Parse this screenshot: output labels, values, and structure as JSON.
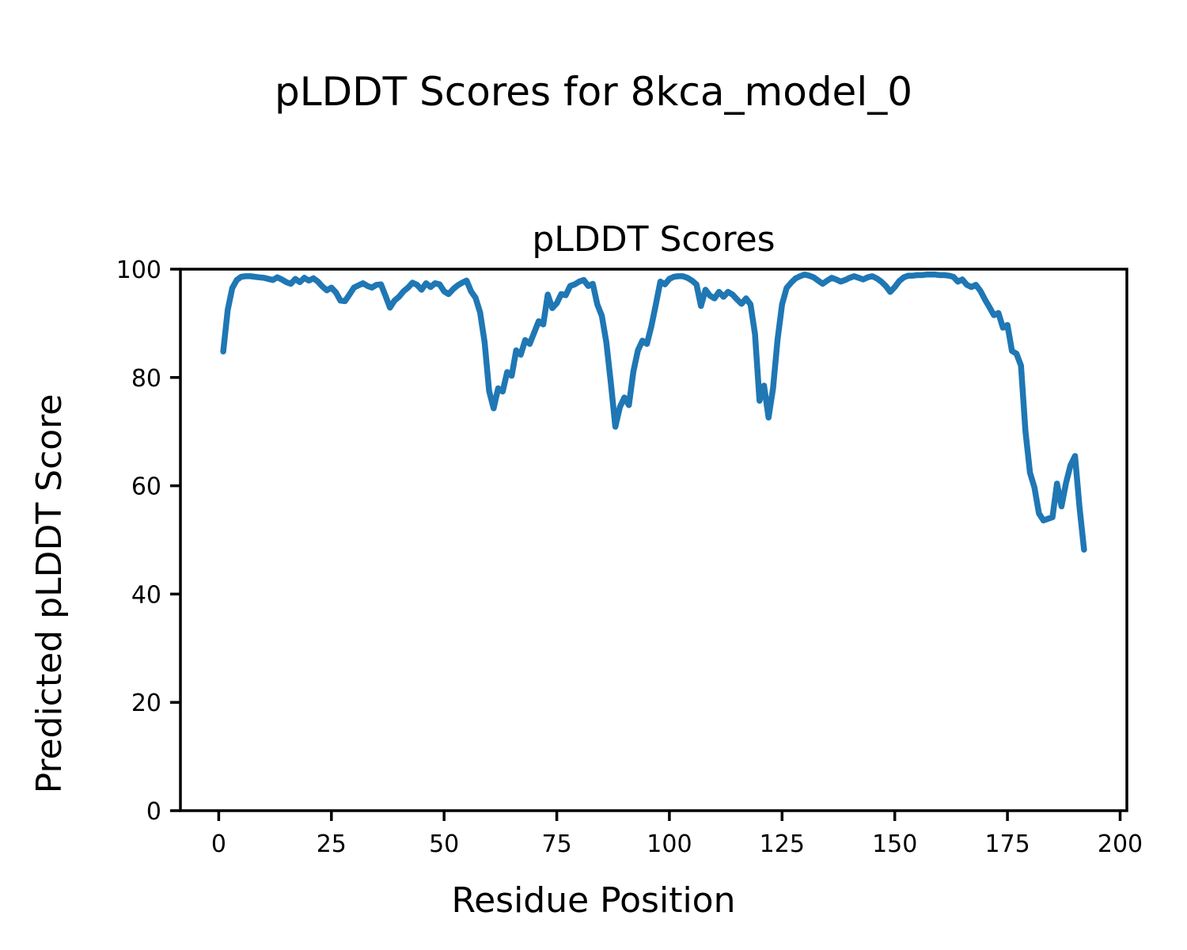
{
  "figure": {
    "background": "#ffffff",
    "frame_color": "#000000"
  },
  "chart_data": {
    "type": "line",
    "suptitle": "pLDDT Scores for 8kca_model_0",
    "title": "pLDDT Scores",
    "xlabel": "Residue Position",
    "ylabel": "Predicted pLDDT Score",
    "line_color": "#1f77b4",
    "grid": false,
    "legend": "none",
    "xlim": [
      -8.5,
      201.5
    ],
    "ylim": [
      0,
      100
    ],
    "xticks": [
      0,
      25,
      50,
      75,
      100,
      125,
      150,
      175,
      200
    ],
    "yticks": [
      0,
      20,
      40,
      60,
      80,
      100
    ],
    "x_start": 1,
    "x_step": 1,
    "values": [
      84.8,
      92.5,
      96.5,
      98.0,
      98.6,
      98.7,
      98.7,
      98.6,
      98.5,
      98.4,
      98.2,
      98.0,
      98.5,
      98.1,
      97.6,
      97.3,
      98.2,
      97.6,
      98.4,
      97.9,
      98.3,
      97.7,
      96.8,
      96.1,
      96.6,
      95.7,
      94.2,
      94.1,
      95.3,
      96.6,
      97.0,
      97.4,
      96.9,
      96.6,
      97.1,
      97.2,
      95.1,
      92.9,
      94.2,
      94.9,
      95.9,
      96.6,
      97.5,
      97.1,
      96.2,
      97.4,
      96.7,
      97.4,
      97.2,
      95.9,
      95.4,
      96.3,
      97.0,
      97.5,
      97.9,
      95.9,
      94.7,
      92.0,
      86.5,
      77.5,
      74.3,
      78.0,
      77.4,
      81.0,
      80.3,
      85.0,
      84.2,
      86.9,
      86.2,
      88.3,
      90.4,
      89.8,
      95.3,
      92.8,
      93.7,
      95.4,
      95.2,
      96.9,
      97.2,
      97.7,
      98.0,
      96.9,
      97.3,
      93.5,
      91.4,
      86.5,
      79.0,
      70.9,
      74.5,
      76.3,
      74.9,
      81.1,
      85.0,
      86.8,
      86.2,
      89.5,
      93.5,
      97.7,
      97.2,
      98.2,
      98.6,
      98.7,
      98.7,
      98.4,
      97.9,
      97.2,
      93.2,
      96.2,
      95.1,
      94.6,
      95.8,
      94.9,
      95.8,
      95.3,
      94.4,
      93.6,
      94.6,
      93.5,
      88.0,
      75.7,
      78.5,
      72.6,
      78.0,
      87.0,
      93.5,
      96.5,
      97.5,
      98.3,
      98.7,
      99.0,
      98.8,
      98.5,
      97.9,
      97.3,
      97.9,
      98.4,
      98.1,
      97.7,
      98.0,
      98.4,
      98.7,
      98.4,
      98.1,
      98.5,
      98.7,
      98.3,
      97.7,
      96.9,
      95.8,
      96.7,
      97.8,
      98.5,
      98.8,
      98.8,
      98.9,
      98.9,
      99.0,
      99.0,
      99.0,
      98.9,
      98.9,
      98.8,
      98.6,
      97.7,
      98.1,
      97.1,
      96.7,
      97.1,
      96.0,
      94.4,
      93.0,
      91.5,
      91.9,
      89.2,
      89.7,
      84.9,
      84.4,
      82.2,
      70.0,
      62.4,
      59.7,
      54.9,
      53.6,
      53.9,
      54.2,
      60.4,
      56.2,
      60.5,
      63.8,
      65.5,
      56.0,
      48.2
    ]
  }
}
